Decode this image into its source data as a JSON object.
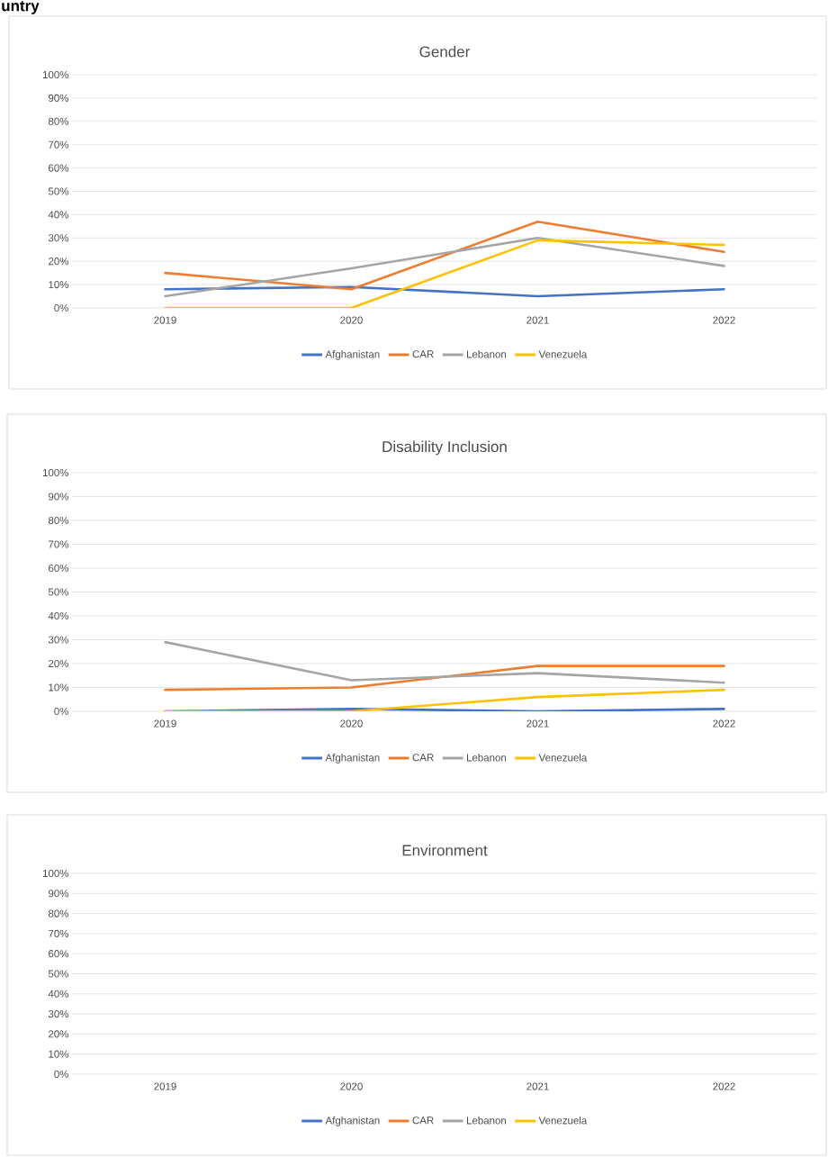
{
  "chart_data": [
    {
      "type": "line",
      "title": "Gender",
      "annotations": [
        "untry"
      ],
      "categories": [
        "2019",
        "2020",
        "2021",
        "2022"
      ],
      "series": [
        {
          "name": "Afghanistan",
          "color": "#4472c4",
          "values": [
            8,
            9,
            5,
            8
          ]
        },
        {
          "name": "CAR",
          "color": "#ed7d31",
          "values": [
            15,
            8,
            37,
            24
          ]
        },
        {
          "name": "Lebanon",
          "color": "#a5a5a5",
          "values": [
            5,
            17,
            30,
            18
          ]
        },
        {
          "name": "Venezuela",
          "color": "#ffc000",
          "values": [
            0,
            0,
            29,
            27
          ]
        }
      ],
      "ylim": [
        0,
        100
      ],
      "yticks": [
        {
          "value": 0,
          "label": "0%"
        },
        {
          "value": 10,
          "label": "10%"
        },
        {
          "value": 20,
          "label": "20%"
        },
        {
          "value": 30,
          "label": "30%"
        },
        {
          "value": 40,
          "label": "40%"
        },
        {
          "value": 50,
          "label": "50%"
        },
        {
          "value": 60,
          "label": "60%"
        },
        {
          "value": 70,
          "label": "70%"
        },
        {
          "value": 80,
          "label": "80%"
        },
        {
          "value": 90,
          "label": "90%"
        },
        {
          "value": 100,
          "label": "100%"
        }
      ],
      "grid": "y",
      "legend": "bottom"
    },
    {
      "type": "line",
      "title": "Disability Inclusion",
      "categories": [
        "2019",
        "2020",
        "2021",
        "2022"
      ],
      "series": [
        {
          "name": "Afghanistan",
          "color": "#4472c4",
          "values": [
            0,
            1,
            0,
            1
          ]
        },
        {
          "name": "CAR",
          "color": "#ed7d31",
          "values": [
            9,
            10,
            19,
            19
          ]
        },
        {
          "name": "Lebanon",
          "color": "#a5a5a5",
          "values": [
            29,
            13,
            16,
            12
          ]
        },
        {
          "name": "Venezuela",
          "color": "#ffc000",
          "values": [
            0,
            0,
            6,
            9
          ]
        }
      ],
      "ylim": [
        0,
        100
      ],
      "yticks": [
        {
          "value": 0,
          "label": "0%"
        },
        {
          "value": 10,
          "label": "10%"
        },
        {
          "value": 20,
          "label": "20%"
        },
        {
          "value": 30,
          "label": "30%"
        },
        {
          "value": 40,
          "label": "40%"
        },
        {
          "value": 50,
          "label": "50%"
        },
        {
          "value": 60,
          "label": "60%"
        },
        {
          "value": 70,
          "label": "70%"
        },
        {
          "value": 80,
          "label": "80%"
        },
        {
          "value": 90,
          "label": "90%"
        },
        {
          "value": 100,
          "label": "100%"
        }
      ],
      "grid": "y",
      "legend": "bottom"
    },
    {
      "type": "line",
      "title": "Environment",
      "categories": [
        "2019",
        "2020",
        "2021",
        "2022"
      ],
      "series": [
        {
          "name": "Afghanistan",
          "color": "#4472c4",
          "values": [
            null,
            null,
            null,
            null
          ]
        },
        {
          "name": "CAR",
          "color": "#ed7d31",
          "values": [
            null,
            null,
            null,
            null
          ]
        },
        {
          "name": "Lebanon",
          "color": "#a5a5a5",
          "values": [
            null,
            null,
            null,
            null
          ]
        },
        {
          "name": "Venezuela",
          "color": "#ffc000",
          "values": [
            null,
            null,
            null,
            null
          ]
        }
      ],
      "ylim": [
        0,
        100
      ],
      "yticks": [
        {
          "value": 0,
          "label": "0%"
        },
        {
          "value": 10,
          "label": "10%"
        },
        {
          "value": 20,
          "label": "20%"
        },
        {
          "value": 30,
          "label": "30%"
        },
        {
          "value": 40,
          "label": "40%"
        },
        {
          "value": 50,
          "label": "50%"
        },
        {
          "value": 60,
          "label": "60%"
        },
        {
          "value": 70,
          "label": "70%"
        },
        {
          "value": 80,
          "label": "80%"
        },
        {
          "value": 90,
          "label": "90%"
        },
        {
          "value": 100,
          "label": "100%"
        }
      ],
      "grid": "y",
      "legend": "bottom"
    }
  ]
}
